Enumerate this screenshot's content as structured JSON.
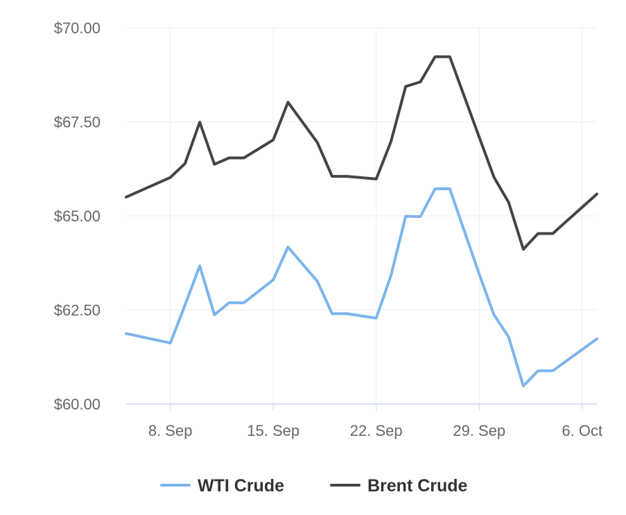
{
  "chart_data": {
    "type": "line",
    "title": "",
    "xlabel": "",
    "ylabel": "",
    "ylim": [
      60,
      70
    ],
    "y_ticks": [
      60,
      62.5,
      65,
      67.5,
      70
    ],
    "y_tick_labels": [
      "$60.00",
      "$62.50",
      "$65.00",
      "$67.50",
      "$70.00"
    ],
    "x_ticks": [
      "2025-09-08",
      "2025-09-15",
      "2025-09-22",
      "2025-09-29",
      "2025-10-06"
    ],
    "x_tick_labels": [
      "8. Sep",
      "15. Sep",
      "22. Sep",
      "29. Sep",
      "6. Oct"
    ],
    "x_range": [
      "2025-09-05",
      "2025-10-07"
    ],
    "grid": true,
    "legend_position": "bottom-center",
    "series": [
      {
        "name": "WTI Crude",
        "color": "#7cb5ec",
        "points": [
          [
            "2025-09-05",
            61.87
          ],
          [
            "2025-09-08",
            61.62
          ],
          [
            "2025-09-09",
            62.63
          ],
          [
            "2025-09-10",
            63.67
          ],
          [
            "2025-09-11",
            62.37
          ],
          [
            "2025-09-12",
            62.69
          ],
          [
            "2025-09-13",
            62.69
          ],
          [
            "2025-09-15",
            63.3
          ],
          [
            "2025-09-16",
            64.17
          ],
          [
            "2025-09-18",
            63.26
          ],
          [
            "2025-09-19",
            62.4
          ],
          [
            "2025-09-20",
            62.4
          ],
          [
            "2025-09-22",
            62.28
          ],
          [
            "2025-09-23",
            63.41
          ],
          [
            "2025-09-24",
            64.99
          ],
          [
            "2025-09-25",
            64.98
          ],
          [
            "2025-09-26",
            65.72
          ],
          [
            "2025-09-27",
            65.72
          ],
          [
            "2025-09-29",
            63.45
          ],
          [
            "2025-09-30",
            62.37
          ],
          [
            "2025-10-01",
            61.78
          ],
          [
            "2025-10-02",
            60.48
          ],
          [
            "2025-10-03",
            60.88
          ],
          [
            "2025-10-04",
            60.88
          ],
          [
            "2025-10-07",
            61.73
          ]
        ]
      },
      {
        "name": "Brent Crude",
        "color": "#434348",
        "points": [
          [
            "2025-09-05",
            65.5
          ],
          [
            "2025-09-08",
            66.02
          ],
          [
            "2025-09-09",
            66.39
          ],
          [
            "2025-09-10",
            67.49
          ],
          [
            "2025-09-11",
            66.37
          ],
          [
            "2025-09-12",
            66.54
          ],
          [
            "2025-09-13",
            66.54
          ],
          [
            "2025-09-15",
            67.02
          ],
          [
            "2025-09-16",
            68.02
          ],
          [
            "2025-09-18",
            66.95
          ],
          [
            "2025-09-19",
            66.05
          ],
          [
            "2025-09-20",
            66.05
          ],
          [
            "2025-09-22",
            65.98
          ],
          [
            "2025-09-23",
            66.97
          ],
          [
            "2025-09-24",
            68.44
          ],
          [
            "2025-09-25",
            68.56
          ],
          [
            "2025-09-26",
            69.23
          ],
          [
            "2025-09-27",
            69.23
          ],
          [
            "2025-09-29",
            67.09
          ],
          [
            "2025-09-30",
            66.03
          ],
          [
            "2025-10-01",
            65.36
          ],
          [
            "2025-10-02",
            64.11
          ],
          [
            "2025-10-03",
            64.53
          ],
          [
            "2025-10-04",
            64.53
          ],
          [
            "2025-10-07",
            65.58
          ]
        ]
      }
    ]
  }
}
